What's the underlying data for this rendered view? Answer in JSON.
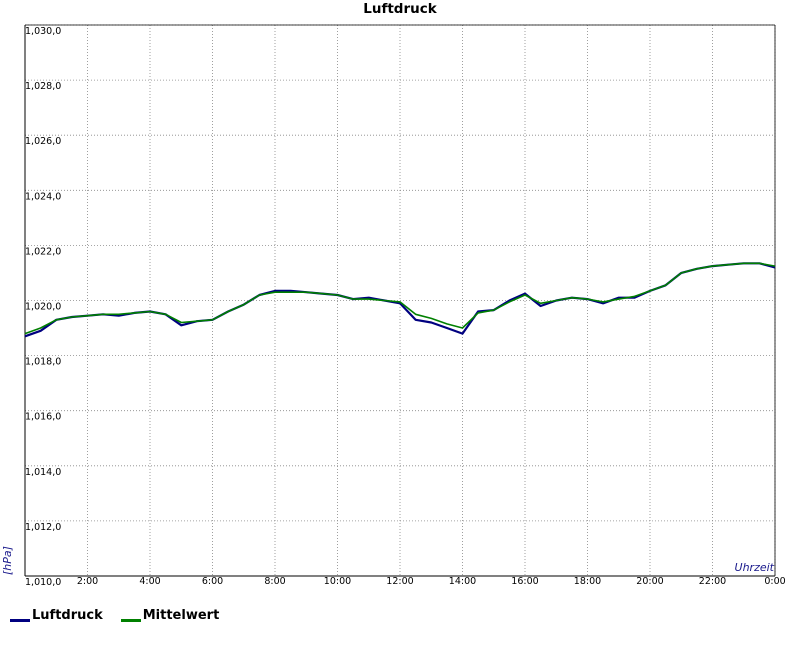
{
  "chart_data": {
    "type": "line",
    "title": "Luftdruck",
    "xlabel": "Uhrzeit",
    "ylabel": "[hPa]",
    "xlim": [
      0,
      24
    ],
    "ylim": [
      1010,
      1030
    ],
    "y_ticks": [
      "1,010,0",
      "1,012,0",
      "1,014,0",
      "1,016,0",
      "1,018,0",
      "1,020,0",
      "1,022,0",
      "1,024,0",
      "1,026,0",
      "1,028,0",
      "1,030,0"
    ],
    "x_ticks": [
      "2:00",
      "4:00",
      "6:00",
      "8:00",
      "10:00",
      "12:00",
      "14:00",
      "16:00",
      "18:00",
      "20:00",
      "22:00",
      "0:00"
    ],
    "grid": true,
    "legend_position": "bottom-left",
    "colors": {
      "luftdruck": "#000080",
      "mittelwert": "#008000"
    },
    "series": [
      {
        "name": "Luftdruck",
        "x": [
          0.0,
          0.5,
          1.0,
          1.5,
          2.0,
          2.5,
          3.0,
          3.5,
          4.0,
          4.5,
          5.0,
          5.5,
          6.0,
          6.5,
          7.0,
          7.5,
          8.0,
          8.5,
          9.0,
          9.5,
          10.0,
          10.5,
          11.0,
          11.5,
          12.0,
          12.5,
          13.0,
          13.5,
          14.0,
          14.5,
          15.0,
          15.5,
          16.0,
          16.5,
          17.0,
          17.5,
          18.0,
          18.5,
          19.0,
          19.5,
          20.0,
          20.5,
          21.0,
          21.5,
          22.0,
          22.5,
          23.0,
          23.5,
          24.0
        ],
        "values": [
          1018.7,
          1018.9,
          1019.3,
          1019.4,
          1019.45,
          1019.5,
          1019.45,
          1019.55,
          1019.6,
          1019.5,
          1019.1,
          1019.25,
          1019.3,
          1019.6,
          1019.85,
          1020.2,
          1020.35,
          1020.35,
          1020.3,
          1020.25,
          1020.2,
          1020.05,
          1020.1,
          1020.0,
          1019.9,
          1019.3,
          1019.2,
          1019.0,
          1018.8,
          1019.6,
          1019.65,
          1020.0,
          1020.25,
          1019.8,
          1020.0,
          1020.1,
          1020.05,
          1019.9,
          1020.1,
          1020.1,
          1020.35,
          1020.55,
          1021.0,
          1021.15,
          1021.25,
          1021.3,
          1021.35,
          1021.35,
          1021.2
        ]
      },
      {
        "name": "Mittelwert",
        "x": [
          0.0,
          0.5,
          1.0,
          1.5,
          2.0,
          2.5,
          3.0,
          3.5,
          4.0,
          4.5,
          5.0,
          5.5,
          6.0,
          6.5,
          7.0,
          7.5,
          8.0,
          8.5,
          9.0,
          9.5,
          10.0,
          10.5,
          11.0,
          11.5,
          12.0,
          12.5,
          13.0,
          13.5,
          14.0,
          14.5,
          15.0,
          15.5,
          16.0,
          16.5,
          17.0,
          17.5,
          18.0,
          18.5,
          19.0,
          19.5,
          20.0,
          20.5,
          21.0,
          21.5,
          22.0,
          22.5,
          23.0,
          23.5,
          24.0
        ],
        "values": [
          1018.8,
          1019.0,
          1019.3,
          1019.4,
          1019.45,
          1019.5,
          1019.5,
          1019.55,
          1019.6,
          1019.5,
          1019.2,
          1019.25,
          1019.3,
          1019.6,
          1019.85,
          1020.2,
          1020.3,
          1020.3,
          1020.3,
          1020.25,
          1020.2,
          1020.05,
          1020.05,
          1020.0,
          1019.95,
          1019.5,
          1019.35,
          1019.15,
          1019.0,
          1019.55,
          1019.65,
          1019.95,
          1020.2,
          1019.9,
          1020.0,
          1020.1,
          1020.05,
          1019.95,
          1020.05,
          1020.15,
          1020.35,
          1020.55,
          1021.0,
          1021.15,
          1021.25,
          1021.3,
          1021.35,
          1021.35,
          1021.25
        ]
      }
    ]
  }
}
